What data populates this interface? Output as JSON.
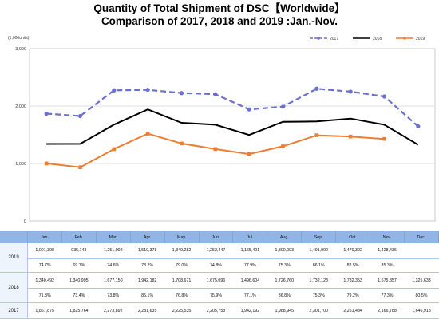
{
  "chart_data": {
    "type": "line",
    "title": "Quantity of Total Shipment of DSC【Worldwide】",
    "subtitle": "Comparison of 2017, 2018 and 2019 :Jan.-Nov.",
    "unit_label": "(1,000units)",
    "categories": [
      "Jan.",
      "Feb.",
      "Mar.",
      "Apr.",
      "May.",
      "Jun.",
      "Jul.",
      "Aug.",
      "Sep.",
      "Oct.",
      "Nov.",
      "Dec."
    ],
    "ylim": [
      0,
      3000
    ],
    "yticks": [
      0,
      1000,
      2000,
      3000
    ],
    "ytick_labels": [
      "0",
      "1,000",
      "2,000",
      "3,000"
    ],
    "grid": true,
    "legend_position": "top-right",
    "series": [
      {
        "name": "2017",
        "color": "#6b6fcf",
        "style": "dashed",
        "marker": "circle",
        "values": [
          1868,
          1826,
          2274,
          2282,
          2226,
          2206,
          1942,
          1989,
          2302,
          2251,
          2167,
          1647
        ]
      },
      {
        "name": "2018",
        "color": "#000000",
        "style": "solid",
        "marker": "none",
        "values": [
          1340,
          1341,
          1677,
          1942,
          1709,
          1675,
          1497,
          1727,
          1732,
          1782,
          1675,
          1326
        ]
      },
      {
        "name": "2019",
        "color": "#ee7d31",
        "style": "solid",
        "marker": "square",
        "values": [
          1001,
          935,
          1251,
          1519,
          1349,
          1252,
          1165,
          1300,
          1492,
          1470,
          1428,
          null
        ]
      }
    ]
  },
  "table": {
    "headers": [
      "",
      "Jan.",
      "Feb.",
      "Mar.",
      "Apr.",
      "May.",
      "Jun.",
      "Jul.",
      "Aug.",
      "Sep.",
      "Oct.",
      "Nov.",
      "Dec."
    ],
    "rows": [
      {
        "year": "2019",
        "qty": [
          "1,001,398",
          "935,148",
          "1,251,002",
          "1,519,378",
          "1,349,282",
          "1,252,447",
          "1,165,401",
          "1,300,093",
          "1,491,992",
          "1,470,392",
          "1,428,436",
          ""
        ],
        "pct": [
          "74.7%",
          "69.7%",
          "74.6%",
          "78.2%",
          "79.0%",
          "74.8%",
          "77.9%",
          "75.3%",
          "86.1%",
          "82.5%",
          "85.3%",
          ""
        ]
      },
      {
        "year": "2018",
        "qty": [
          "1,340,492",
          "1,340,995",
          "1,677,150",
          "1,942,182",
          "1,708,671",
          "1,675,096",
          "1,496,604",
          "1,726,760",
          "1,732,128",
          "1,782,353",
          "1,675,357",
          "1,325,633"
        ],
        "pct": [
          "71.8%",
          "73.4%",
          "73.8%",
          "85.1%",
          "76.8%",
          "75.9%",
          "77.1%",
          "86.8%",
          "75.3%",
          "79.2%",
          "77.3%",
          "80.5%"
        ]
      },
      {
        "year": "2017",
        "qty": [
          "1,867,875",
          "1,825,764",
          "2,273,892",
          "2,281,635",
          "2,225,535",
          "2,205,758",
          "1,942,192",
          "1,988,945",
          "2,301,700",
          "2,251,484",
          "2,166,788",
          "1,646,918"
        ],
        "pct": []
      }
    ]
  }
}
